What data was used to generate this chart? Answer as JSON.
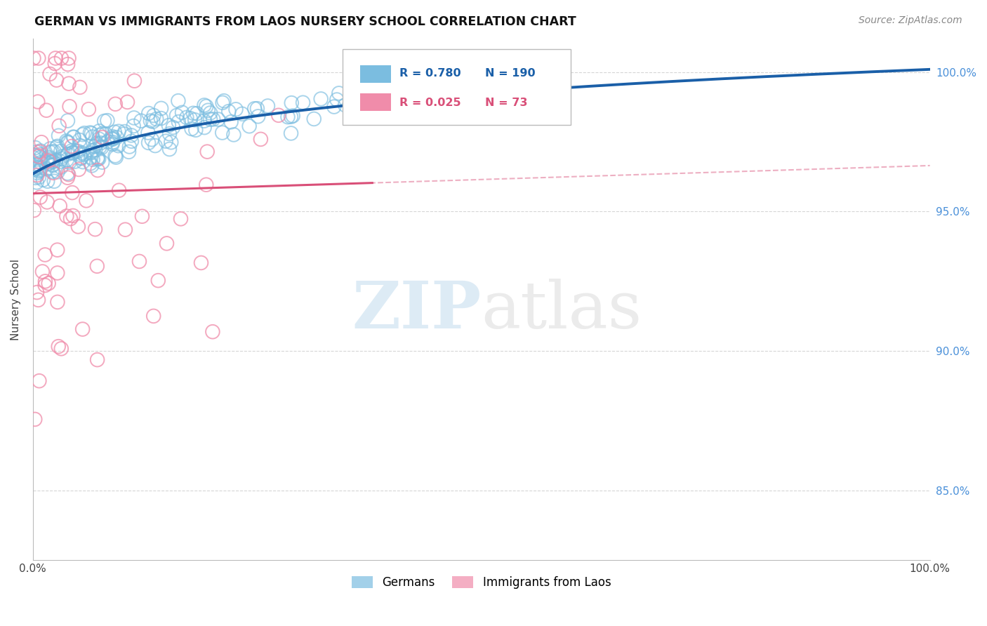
{
  "title": "GERMAN VS IMMIGRANTS FROM LAOS NURSERY SCHOOL CORRELATION CHART",
  "source": "Source: ZipAtlas.com",
  "ylabel": "Nursery School",
  "legend_german": "Germans",
  "legend_laos": "Immigrants from Laos",
  "r_german": 0.78,
  "n_german": 190,
  "r_laos": 0.025,
  "n_laos": 73,
  "german_color": "#7bbde0",
  "laos_color": "#f08caa",
  "german_line_color": "#1a5fa8",
  "laos_line_color": "#d94f78",
  "background_color": "#ffffff",
  "grid_color": "#cccccc",
  "watermark_zip": "ZIP",
  "watermark_atlas": "atlas",
  "right_ytick_labels": [
    "100.0%",
    "95.0%",
    "90.0%",
    "85.0%"
  ],
  "right_ytick_values": [
    1.0,
    0.95,
    0.9,
    0.85
  ],
  "ymin": 0.825,
  "ymax": 1.012,
  "xmin": 0.0,
  "xmax": 1.0
}
